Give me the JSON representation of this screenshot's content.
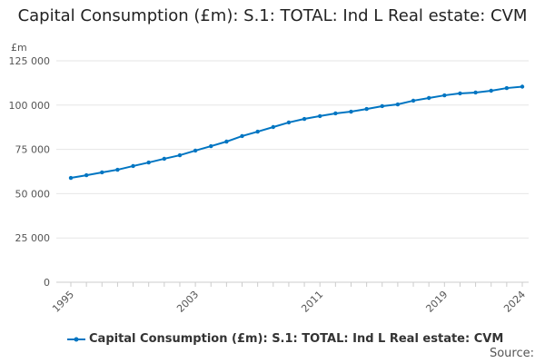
{
  "chart_data": {
    "type": "line",
    "title": "Capital Consumption (£m): S.1: TOTAL: Ind L Real estate: CVM",
    "ylabel": "£m",
    "xlabel": "",
    "ylim": [
      0,
      125000
    ],
    "yticks": [
      "0",
      "25 000",
      "50 000",
      "75 000",
      "100 000",
      "125 000"
    ],
    "ytick_values": [
      0,
      25000,
      50000,
      75000,
      100000,
      125000
    ],
    "xticks": [
      "1995",
      "2003",
      "2011",
      "2019",
      "2024"
    ],
    "grid": true,
    "legend_placement": "bottom",
    "series": [
      {
        "name": "Capital Consumption (£m): S.1: TOTAL: Ind L Real estate: CVM",
        "color": "#0075c2",
        "x": [
          1995,
          1996,
          1997,
          1998,
          1999,
          2000,
          2001,
          2002,
          2003,
          2004,
          2005,
          2006,
          2007,
          2008,
          2009,
          2010,
          2011,
          2012,
          2013,
          2014,
          2015,
          2016,
          2017,
          2018,
          2019,
          2020,
          2021,
          2022,
          2023,
          2024
        ],
        "values": [
          58900,
          60400,
          62000,
          63500,
          65600,
          67600,
          69700,
          71700,
          74300,
          76800,
          79400,
          82500,
          85000,
          87600,
          90200,
          92200,
          93800,
          95300,
          96300,
          97800,
          99400,
          100400,
          102500,
          104000,
          105500,
          106600,
          107100,
          108100,
          109600,
          110400
        ]
      }
    ]
  },
  "source_label": "Source:"
}
